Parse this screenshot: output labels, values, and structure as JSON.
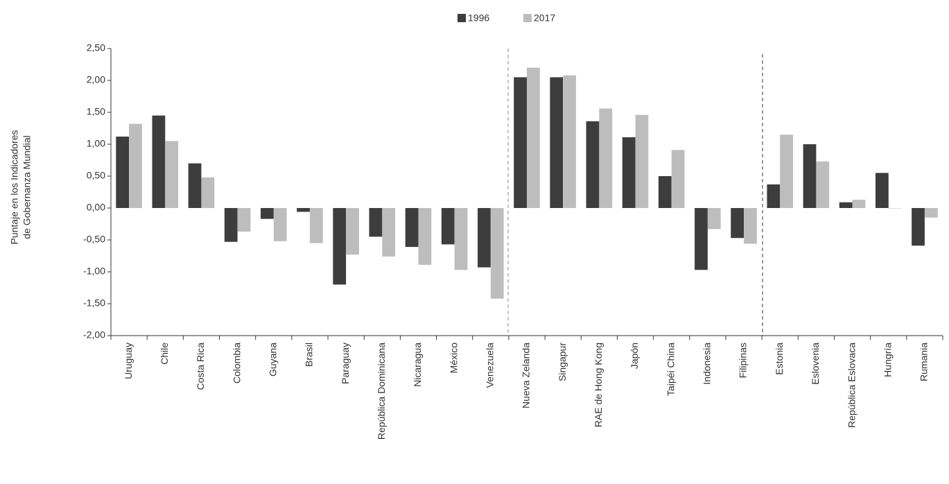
{
  "chart_data": {
    "type": "bar",
    "y_label": [
      "Puntaje en los Indicadores",
      "de Gobernanza Mundial"
    ],
    "categories": [
      "Uruguay",
      "Chile",
      "Costa Rica",
      "Colombia",
      "Guyana",
      "Brasil",
      "Paraguay",
      "República Dominicana",
      "Nicaragua",
      "México",
      "Venezuela",
      "Nueva Zelanda",
      "Singapur",
      "RAE de Hong Kong",
      "Japón",
      "Taipéi China",
      "Indonesia",
      "Filipinas",
      "Estonia",
      "Eslovenia",
      "República Eslovaca",
      "Hungría",
      "Rumania"
    ],
    "series": [
      {
        "name": "1996",
        "color": "#3d3d3d",
        "values": [
          1.12,
          1.45,
          0.7,
          -0.53,
          -0.17,
          -0.06,
          -1.2,
          -0.45,
          -0.61,
          -0.57,
          -0.93,
          2.05,
          2.05,
          1.36,
          1.11,
          0.5,
          -0.97,
          -0.47,
          0.37,
          1.0,
          0.09,
          0.55,
          -0.59
        ]
      },
      {
        "name": "2017",
        "color": "#bdbdbd",
        "values": [
          1.32,
          1.05,
          0.48,
          -0.37,
          -0.52,
          -0.55,
          -0.73,
          -0.76,
          -0.89,
          -0.97,
          -1.42,
          2.2,
          2.08,
          1.56,
          1.46,
          0.91,
          -0.33,
          -0.56,
          1.15,
          0.73,
          0.13,
          0.0,
          -0.15
        ]
      }
    ],
    "ylim": [
      -2.0,
      2.5
    ],
    "yticks": [
      {
        "value": -2.0,
        "label": "-2,00"
      },
      {
        "value": -1.5,
        "label": "-1,50"
      },
      {
        "value": -1.0,
        "label": "-1,00"
      },
      {
        "value": -0.5,
        "label": "-0,50"
      },
      {
        "value": 0.0,
        "label": "0,00"
      },
      {
        "value": 0.5,
        "label": "0,50"
      },
      {
        "value": 1.0,
        "label": "1,00"
      },
      {
        "value": 1.5,
        "label": "1,50"
      },
      {
        "value": 2.0,
        "label": "2,00"
      },
      {
        "value": 2.5,
        "label": "2,50"
      }
    ],
    "legend": "top"
  }
}
